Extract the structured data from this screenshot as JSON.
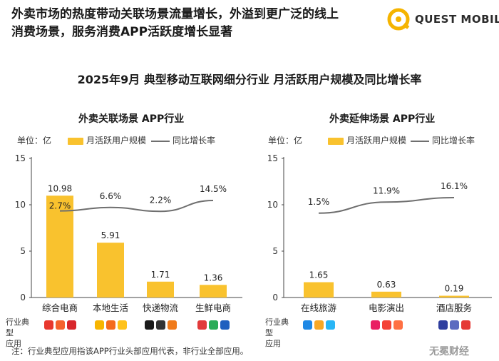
{
  "header": {
    "line1": "外卖市场的热度带动关联场景流量增长，外溢到更广泛的线上",
    "line2": "消费场景，服务消费APP活跃度增长显著"
  },
  "brand": {
    "name": "QUEST MOBILE",
    "color": "#f5b400"
  },
  "chart_title": "2025年9月 典型移动互联网细分行业 月活跃用户规模及同比增长率",
  "row_label": {
    "line1": "行业典型",
    "line2": "应用"
  },
  "footnote": "注：行业典型应用指该APP行业头部应用代表，非行业全部应用。",
  "credit": "无冕财经",
  "colors": {
    "bar": "#f9c22e",
    "line": "#6f6f6f",
    "axis": "#444444"
  },
  "chart_data": [
    {
      "type": "bar",
      "title": "外卖关联场景 APP行业",
      "unit": "单位：亿",
      "legend": {
        "bar": "月活跃用户规模",
        "line": "同比增长率",
        "position": "top"
      },
      "categories": [
        "综合电商",
        "本地生活",
        "快递物流",
        "生鲜电商"
      ],
      "series": [
        {
          "name": "月活跃用户规模",
          "type": "bar",
          "values": [
            10.98,
            5.91,
            1.71,
            1.36
          ],
          "labels": [
            "10.98",
            "5.91",
            "1.71",
            "1.36"
          ]
        },
        {
          "name": "同比增长率",
          "type": "line",
          "values": [
            2.7,
            6.6,
            2.2,
            14.5
          ],
          "labels": [
            "2.7%",
            "6.6%",
            "2.2%",
            "14.5%"
          ]
        }
      ],
      "ylim": [
        0,
        15
      ],
      "yticks": [
        0,
        5,
        10,
        15
      ],
      "grid": false,
      "icons": [
        [
          "#e8382e",
          "#f5622d",
          "#d8262b"
        ],
        [
          "#f7b500",
          "#f46b1e",
          "#ffc21a"
        ],
        [
          "#1b1b1b",
          "#333333",
          "#f07a1a"
        ],
        [
          "#e23b3b",
          "#2bab57",
          "#1f5fbf"
        ]
      ]
    },
    {
      "type": "bar",
      "title": "外卖延伸场景 APP行业",
      "unit": "单位：亿",
      "legend": {
        "bar": "月活跃用户规模",
        "line": "同比增长率",
        "position": "top"
      },
      "categories": [
        "在线旅游",
        "电影演出",
        "酒店服务"
      ],
      "series": [
        {
          "name": "月活跃用户规模",
          "type": "bar",
          "values": [
            1.65,
            0.63,
            0.19
          ],
          "labels": [
            "1.65",
            "0.63",
            "0.19"
          ]
        },
        {
          "name": "同比增长率",
          "type": "line",
          "values": [
            1.5,
            11.9,
            16.1
          ],
          "labels": [
            "1.5%",
            "11.9%",
            "16.1%"
          ]
        }
      ],
      "ylim": [
        0,
        15
      ],
      "yticks": [
        0,
        5,
        10,
        15
      ],
      "grid": false,
      "icons": [
        [
          "#1e88e5",
          "#f9a825",
          "#29b6f6"
        ],
        [
          "#e91e63",
          "#f44336",
          "#ff7043"
        ],
        [
          "#303f9f",
          "#5c6bc0",
          "#e53935"
        ]
      ]
    }
  ]
}
